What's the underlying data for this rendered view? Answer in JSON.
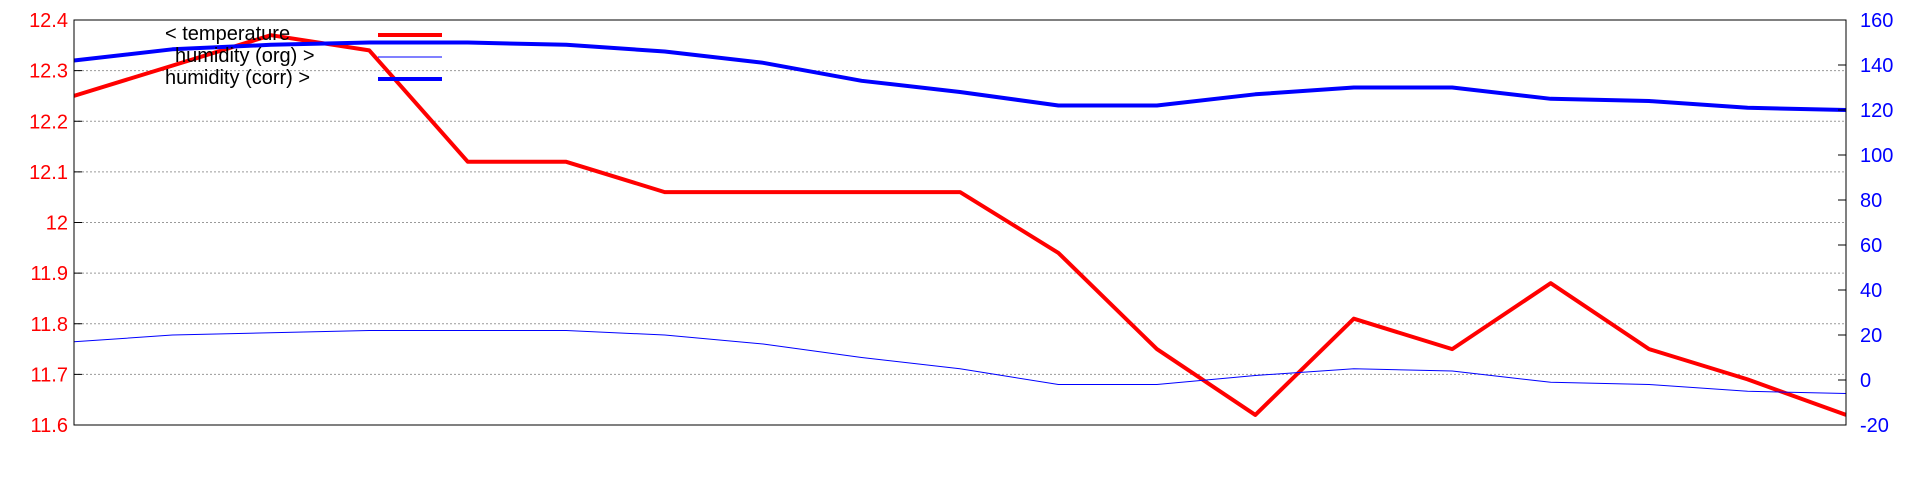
{
  "chart_data": {
    "type": "line",
    "title": "",
    "xlabel": "",
    "grid": true,
    "legend": "top-left",
    "y_left": {
      "lim": [
        11.6,
        12.4
      ],
      "ticks": [
        "11.6",
        "11.7",
        "11.8",
        "11.9",
        "12",
        "12.1",
        "12.2",
        "12.3",
        "12.4"
      ],
      "color": "#ff0000"
    },
    "y_right": {
      "lim": [
        -20,
        160
      ],
      "ticks": [
        "-20",
        "0",
        "20",
        "40",
        "60",
        "80",
        "100",
        "120",
        "140",
        "160"
      ],
      "color": "#0000ff"
    },
    "x": [
      0,
      1,
      2,
      3,
      4,
      5,
      6,
      7,
      8,
      9,
      10,
      11,
      12,
      13,
      14,
      15,
      16,
      17,
      18
    ],
    "series": [
      {
        "name": "< temperature",
        "axis": "left",
        "color": "#ff0000",
        "line_weight": "thick",
        "values": [
          12.25,
          12.31,
          12.37,
          12.34,
          12.12,
          12.12,
          12.06,
          12.06,
          12.06,
          12.06,
          11.94,
          11.75,
          11.62,
          11.81,
          11.75,
          11.88,
          11.75,
          11.69,
          11.62
        ]
      },
      {
        "name": "humidity (org) >",
        "axis": "right",
        "color": "#0000ff",
        "line_weight": "thin",
        "values": [
          17,
          20,
          21,
          22,
          22,
          22,
          20,
          16,
          10,
          5,
          -2,
          -2,
          2,
          5,
          4,
          -1,
          -2,
          -5,
          -6
        ]
      },
      {
        "name": "humidity (corr) >",
        "axis": "right",
        "color": "#0000ff",
        "line_weight": "thick",
        "values": [
          142,
          147,
          149,
          150,
          150,
          149,
          146,
          141,
          133,
          128,
          122,
          122,
          127,
          130,
          130,
          125,
          124,
          121,
          120
        ]
      }
    ]
  }
}
